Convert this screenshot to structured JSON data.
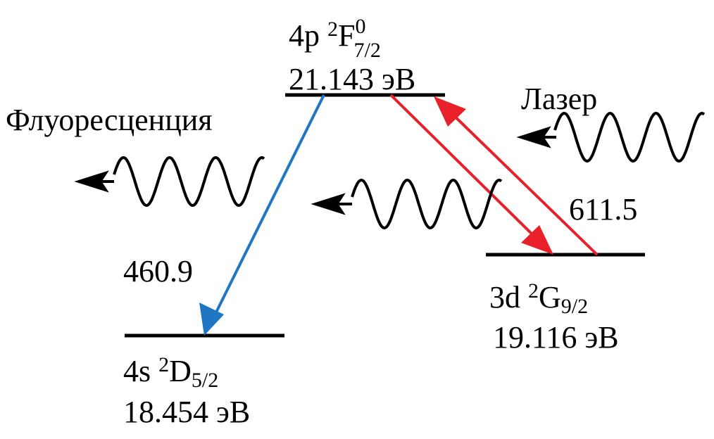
{
  "levels": [
    {
      "config": "4p",
      "multiplicity": "2",
      "term": "F",
      "parity": "0",
      "j": "7/2",
      "energy": "21.143 эВ"
    },
    {
      "config": "3d",
      "multiplicity": "2",
      "term": "G",
      "j": "9/2",
      "energy": "19.116 эВ"
    },
    {
      "config": "4s",
      "multiplicity": "2",
      "term": "D",
      "j": "5/2",
      "energy": "18.454 эВ"
    }
  ],
  "transitions": [
    {
      "wavelength": "460.9"
    },
    {
      "wavelength": "611.5"
    }
  ],
  "labels": {
    "fluorescence": "Флуоресценция",
    "laser": "Лазер"
  }
}
